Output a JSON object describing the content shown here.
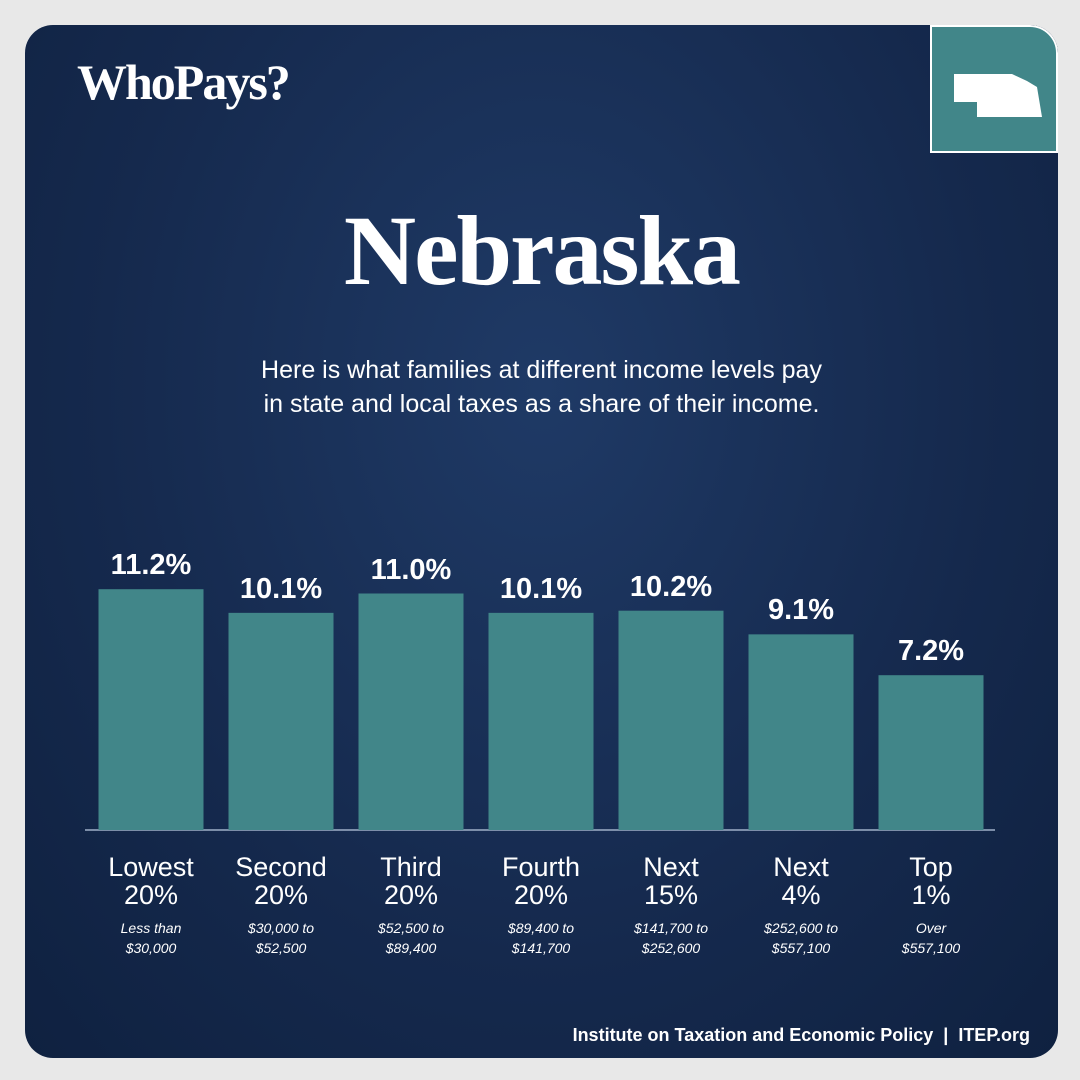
{
  "brand": "WhoPays?",
  "chart_data": {
    "type": "bar",
    "title": "Nebraska",
    "subtitle": "Here is what families at different income levels pay\nin state and local taxes as a share of their income.",
    "categories": [
      "Lowest\n20%",
      "Second\n20%",
      "Third\n20%",
      "Fourth\n20%",
      "Next\n15%",
      "Next\n4%",
      "Top\n1%"
    ],
    "category_notes": [
      "Less than\n$30,000",
      "$30,000 to\n$52,500",
      "$52,500 to\n$89,400",
      "$89,400 to\n$141,700",
      "$141,700 to\n$252,600",
      "$252,600 to\n$557,100",
      "Over\n$557,100"
    ],
    "values": [
      11.2,
      10.1,
      11.0,
      10.1,
      10.2,
      9.1,
      7.2
    ],
    "value_labels": [
      "11.2%",
      "10.1%",
      "11.0%",
      "10.1%",
      "10.2%",
      "9.1%",
      "7.2%"
    ],
    "color": "#418689"
  },
  "footer": "Institute on Taxation and Economic Policy  |  ITEP.org"
}
